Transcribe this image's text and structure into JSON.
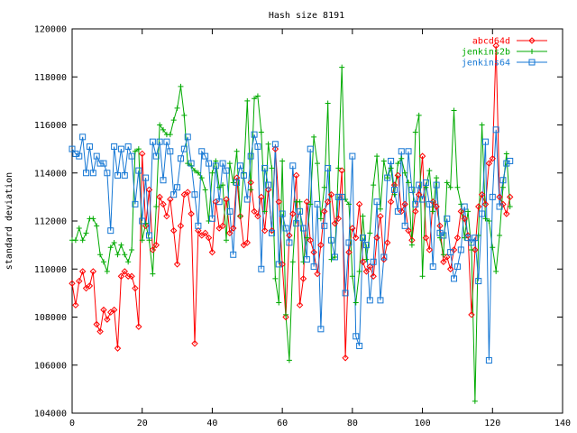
{
  "chart_data": {
    "type": "line",
    "title": "Hash size 8191",
    "xlabel": "",
    "ylabel": "standard deviation",
    "xlim": [
      0,
      140
    ],
    "ylim": [
      104000,
      120000
    ],
    "x_ticks": [
      0,
      20,
      40,
      60,
      80,
      100,
      120,
      140
    ],
    "y_ticks": [
      104000,
      106000,
      108000,
      110000,
      112000,
      114000,
      116000,
      118000,
      120000
    ],
    "grid": false,
    "legend_position": "top-right",
    "series": [
      {
        "name": "abcd64d",
        "color": "#ff0000",
        "marker": "diamond",
        "x": [
          0,
          1,
          2,
          3,
          4,
          5,
          6,
          7,
          8,
          9,
          10,
          11,
          12,
          13,
          14,
          15,
          16,
          17,
          18,
          19,
          20,
          21,
          22,
          23,
          24,
          25,
          26,
          27,
          28,
          29,
          30,
          31,
          32,
          33,
          34,
          35,
          36,
          37,
          38,
          39,
          40,
          41,
          42,
          43,
          44,
          45,
          46,
          47,
          48,
          49,
          50,
          51,
          52,
          53,
          54,
          55,
          56,
          57,
          58,
          59,
          60,
          61,
          62,
          63,
          64,
          65,
          66,
          67,
          68,
          69,
          70,
          71,
          72,
          73,
          74,
          75,
          76,
          77,
          78,
          79,
          80,
          81,
          82,
          83,
          84,
          85,
          86,
          87,
          88,
          89,
          90,
          91,
          92,
          93,
          94,
          95,
          96,
          97,
          98,
          99,
          100,
          101,
          102,
          103,
          104,
          105,
          106,
          107,
          108,
          109,
          110,
          111,
          112,
          113,
          114,
          115,
          116,
          117,
          118,
          119,
          120,
          121,
          122,
          123,
          124,
          125
        ],
        "y": [
          109400,
          108500,
          109500,
          109900,
          109200,
          109300,
          109900,
          107700,
          107400,
          108300,
          107900,
          108200,
          108300,
          106700,
          109700,
          109900,
          109700,
          109700,
          109200,
          107600,
          114800,
          111800,
          113300,
          110800,
          111000,
          113000,
          112700,
          112200,
          112900,
          111600,
          110200,
          111800,
          113100,
          113200,
          112300,
          106900,
          111600,
          111400,
          111500,
          111300,
          110700,
          112800,
          111700,
          111800,
          112900,
          111500,
          111700,
          113800,
          112200,
          111000,
          111100,
          113600,
          112400,
          112200,
          113000,
          111600,
          113300,
          111600,
          115000,
          112800,
          110200,
          108000,
          111400,
          112300,
          113900,
          108500,
          109600,
          112800,
          111200,
          110700,
          109800,
          111000,
          112400,
          112800,
          113100,
          111900,
          112100,
          114100,
          106300,
          110700,
          111700,
          111300,
          112700,
          110300,
          109900,
          110100,
          109700,
          111300,
          112200,
          110400,
          111100,
          112800,
          113500,
          113900,
          112400,
          112700,
          111600,
          111200,
          112400,
          113100,
          114700,
          111300,
          110800,
          112800,
          112600,
          111800,
          110300,
          110500,
          110000,
          110800,
          111300,
          112400,
          112100,
          111400,
          108100,
          110800,
          112600,
          113100,
          112700,
          114400,
          114600,
          119300,
          113000,
          112700,
          112300,
          113000
        ]
      },
      {
        "name": "jenkins2b",
        "color": "#00aa00",
        "marker": "plus",
        "x": [
          0,
          1,
          2,
          3,
          4,
          5,
          6,
          7,
          8,
          9,
          10,
          11,
          12,
          13,
          14,
          15,
          16,
          17,
          18,
          19,
          20,
          21,
          22,
          23,
          24,
          25,
          26,
          27,
          28,
          29,
          30,
          31,
          32,
          33,
          34,
          35,
          36,
          37,
          38,
          39,
          40,
          41,
          42,
          43,
          44,
          45,
          46,
          47,
          48,
          49,
          50,
          51,
          52,
          53,
          54,
          55,
          56,
          57,
          58,
          59,
          60,
          61,
          62,
          63,
          64,
          65,
          66,
          67,
          68,
          69,
          70,
          71,
          72,
          73,
          74,
          75,
          76,
          77,
          78,
          79,
          80,
          81,
          82,
          83,
          84,
          85,
          86,
          87,
          88,
          89,
          90,
          91,
          92,
          93,
          94,
          95,
          96,
          97,
          98,
          99,
          100,
          101,
          102,
          103,
          104,
          105,
          106,
          107,
          108,
          109,
          110,
          111,
          112,
          113,
          114,
          115,
          116,
          117,
          118,
          119,
          120,
          121,
          122,
          123,
          124,
          125
        ],
        "y": [
          111200,
          111200,
          111700,
          111200,
          111500,
          112100,
          112100,
          111800,
          110600,
          110300,
          109900,
          110900,
          111100,
          110600,
          111000,
          110600,
          110300,
          110800,
          114900,
          115000,
          111200,
          111900,
          111200,
          109800,
          112600,
          116000,
          115800,
          115600,
          115600,
          116200,
          116700,
          117600,
          116400,
          114400,
          114300,
          114100,
          114000,
          113800,
          113300,
          112000,
          114000,
          114500,
          113400,
          113500,
          111200,
          114400,
          113600,
          114900,
          112200,
          114000,
          117000,
          113300,
          117100,
          117200,
          115700,
          112400,
          115200,
          114200,
          109600,
          108600,
          114500,
          108100,
          106200,
          110300,
          112800,
          112800,
          110300,
          111300,
          112700,
          115500,
          114400,
          112100,
          113400,
          116900,
          110400,
          110500,
          114200,
          118400,
          112900,
          112700,
          109700,
          108600,
          109900,
          112200,
          110400,
          111500,
          113500,
          114700,
          112500,
          114500,
          113800,
          114200,
          113100,
          114400,
          114600,
          114000,
          113600,
          111000,
          115700,
          116400,
          109700,
          113400,
          114100,
          112400,
          113800,
          111300,
          110600,
          113600,
          113400,
          116600,
          113400,
          112700,
          111300,
          112400,
          110800,
          104500,
          111400,
          116000,
          112100,
          112000,
          110900,
          109900,
          111400,
          113400,
          114800,
          112600
        ]
      },
      {
        "name": "jenkins64",
        "color": "#1577d4",
        "marker": "square",
        "x": [
          0,
          1,
          2,
          3,
          4,
          5,
          6,
          7,
          8,
          9,
          10,
          11,
          12,
          13,
          14,
          15,
          16,
          17,
          18,
          19,
          20,
          21,
          22,
          23,
          24,
          25,
          26,
          27,
          28,
          29,
          30,
          31,
          32,
          33,
          34,
          35,
          36,
          37,
          38,
          39,
          40,
          41,
          42,
          43,
          44,
          45,
          46,
          47,
          48,
          49,
          50,
          51,
          52,
          53,
          54,
          55,
          56,
          57,
          58,
          59,
          60,
          61,
          62,
          63,
          64,
          65,
          66,
          67,
          68,
          69,
          70,
          71,
          72,
          73,
          74,
          75,
          76,
          77,
          78,
          79,
          80,
          81,
          82,
          83,
          84,
          85,
          86,
          87,
          88,
          89,
          90,
          91,
          92,
          93,
          94,
          95,
          96,
          97,
          98,
          99,
          100,
          101,
          102,
          103,
          104,
          105,
          106,
          107,
          108,
          109,
          110,
          111,
          112,
          113,
          114,
          115,
          116,
          117,
          118,
          119,
          120,
          121,
          122,
          123,
          124,
          125
        ],
        "y": [
          115000,
          114800,
          114700,
          115500,
          114000,
          115100,
          114000,
          114700,
          114400,
          114400,
          114000,
          111600,
          115100,
          113900,
          115000,
          113900,
          115100,
          114700,
          112700,
          114100,
          112000,
          113800,
          111400,
          115300,
          114700,
          115300,
          113700,
          115300,
          114900,
          113100,
          113400,
          114600,
          115000,
          115500,
          114400,
          113100,
          111800,
          114900,
          114700,
          114400,
          112100,
          114300,
          112800,
          114400,
          114100,
          112400,
          110600,
          113600,
          114300,
          113900,
          112900,
          114700,
          115600,
          115100,
          110000,
          114200,
          113500,
          111500,
          115200,
          110200,
          112300,
          111700,
          111100,
          114300,
          111900,
          112400,
          111700,
          110400,
          115000,
          110100,
          112700,
          107500,
          111800,
          114200,
          111200,
          110500,
          113000,
          113000,
          109000,
          111100,
          114700,
          107200,
          106800,
          111300,
          111000,
          108700,
          110300,
          112800,
          108700,
          110500,
          113800,
          114500,
          113300,
          112400,
          114900,
          111800,
          114900,
          113300,
          112700,
          113500,
          112900,
          113600,
          112700,
          110100,
          113500,
          111500,
          111400,
          112100,
          110700,
          109600,
          110100,
          110800,
          112600,
          111300,
          111100,
          111300,
          109500,
          112300,
          115300,
          106200,
          113000,
          115800,
          112600,
          113700,
          114400,
          114500
        ]
      }
    ]
  }
}
